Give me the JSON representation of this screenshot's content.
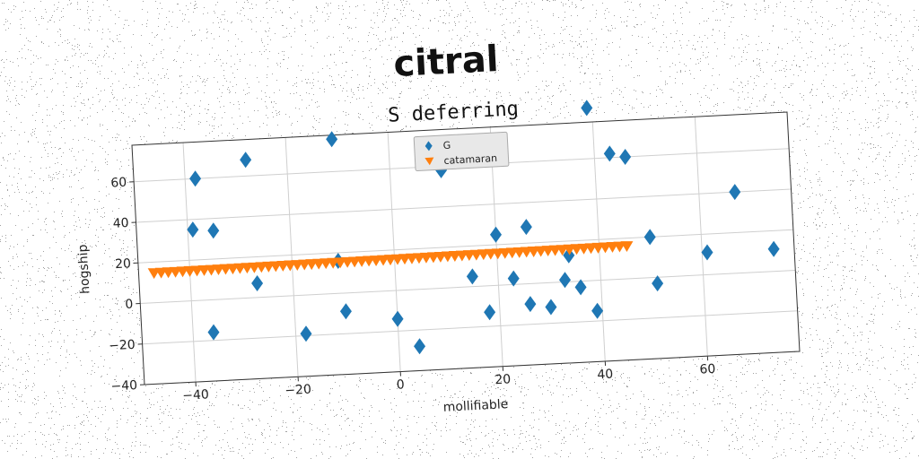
{
  "chart_data": {
    "type": "scatter",
    "suptitle": "citral",
    "title": "S deferring",
    "xlabel": "mollifiable",
    "ylabel": "hogship",
    "xlim": [
      -50,
      78
    ],
    "ylim": [
      -40,
      78
    ],
    "xticks": [
      -40,
      -20,
      0,
      20,
      40,
      60
    ],
    "yticks": [
      -40,
      -20,
      0,
      20,
      40,
      60
    ],
    "grid": true,
    "legend_position": "top-center",
    "series": [
      {
        "name": "G",
        "marker": "diamond",
        "color": "#1f77b4",
        "points": [
          [
            -38,
            60
          ],
          [
            -39,
            35
          ],
          [
            -35,
            34
          ],
          [
            -28,
            68
          ],
          [
            -27,
            7
          ],
          [
            -36,
            -16
          ],
          [
            -11,
            76
          ],
          [
            -11,
            16
          ],
          [
            -10,
            -9
          ],
          [
            -18,
            -19
          ],
          [
            0,
            -14
          ],
          [
            4,
            -28
          ],
          [
            10,
            58
          ],
          [
            15,
            5
          ],
          [
            18,
            -13
          ],
          [
            20,
            25
          ],
          [
            23,
            3
          ],
          [
            26,
            28
          ],
          [
            26,
            -10
          ],
          [
            30,
            -12
          ],
          [
            33,
            1
          ],
          [
            34,
            13
          ],
          [
            36,
            -3
          ],
          [
            39,
            85
          ],
          [
            39,
            -15
          ],
          [
            43,
            62
          ],
          [
            46,
            60
          ],
          [
            50,
            20
          ],
          [
            51,
            -3
          ],
          [
            61,
            11
          ],
          [
            67,
            40
          ],
          [
            74,
            11
          ]
        ]
      },
      {
        "name": "catamaran",
        "marker": "triangle-down",
        "color": "#ff7f0e",
        "x_start": -47,
        "x_end": 45,
        "x_step": 1.4,
        "y_start": 14.5,
        "y_end": 16
      }
    ]
  }
}
